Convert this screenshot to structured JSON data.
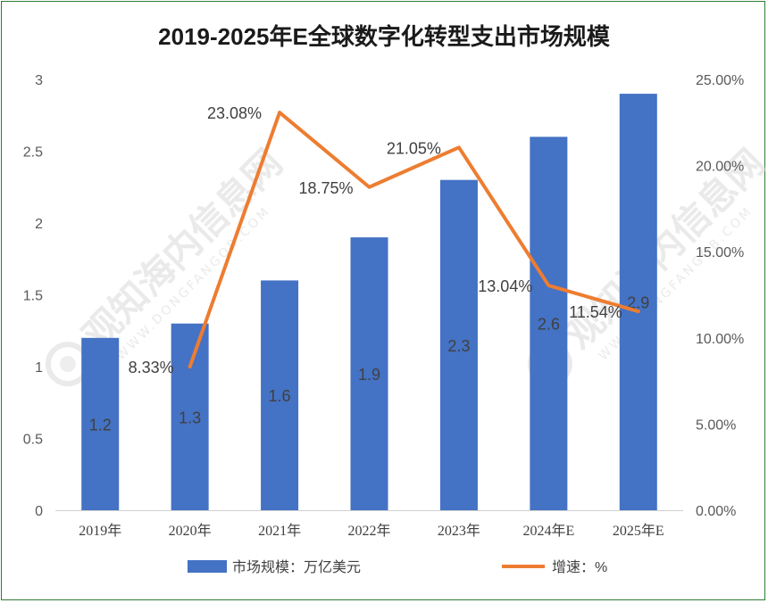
{
  "chart_data": {
    "type": "bar",
    "title": "2019-2025年E全球数字化转型支出市场规模",
    "categories": [
      "2019年",
      "2020年",
      "2021年",
      "2022年",
      "2023年",
      "2024年E",
      "2025年E"
    ],
    "series": [
      {
        "name": "市场规模：万亿美元",
        "type": "bar",
        "axis": "left",
        "color": "#4472c4",
        "values": [
          1.2,
          1.3,
          1.6,
          1.9,
          2.3,
          2.6,
          2.9
        ],
        "labels": [
          "1.2",
          "1.3",
          "1.6",
          "1.9",
          "2.3",
          "2.6",
          "2.9"
        ]
      },
      {
        "name": "增速：%",
        "type": "line",
        "axis": "right",
        "color": "#ed7d31",
        "x": [
          "2020年",
          "2021年",
          "2022年",
          "2023年",
          "2024年E",
          "2025年E"
        ],
        "values": [
          8.33,
          23.08,
          18.75,
          21.05,
          13.04,
          11.54
        ],
        "labels": [
          "8.33%",
          "23.08%",
          "18.75%",
          "21.05%",
          "13.04%",
          "11.54%"
        ]
      }
    ],
    "y_left": {
      "min": 0,
      "max": 3,
      "ticks": [
        0,
        0.5,
        1,
        1.5,
        2,
        2.5,
        3
      ],
      "tick_labels": [
        "0",
        "0.5",
        "1",
        "1.5",
        "2",
        "2.5",
        "3"
      ]
    },
    "y_right": {
      "min": 0,
      "max": 25,
      "ticks": [
        0,
        5,
        10,
        15,
        20,
        25
      ],
      "tick_labels": [
        "0.00%",
        "5.00%",
        "10.00%",
        "15.00%",
        "20.00%",
        "25.00%"
      ]
    },
    "grid": false,
    "legend": "bottom"
  },
  "watermark": {
    "text": "观知海内信息网",
    "subtext": "WWW.DONGFANGQB.COM"
  }
}
